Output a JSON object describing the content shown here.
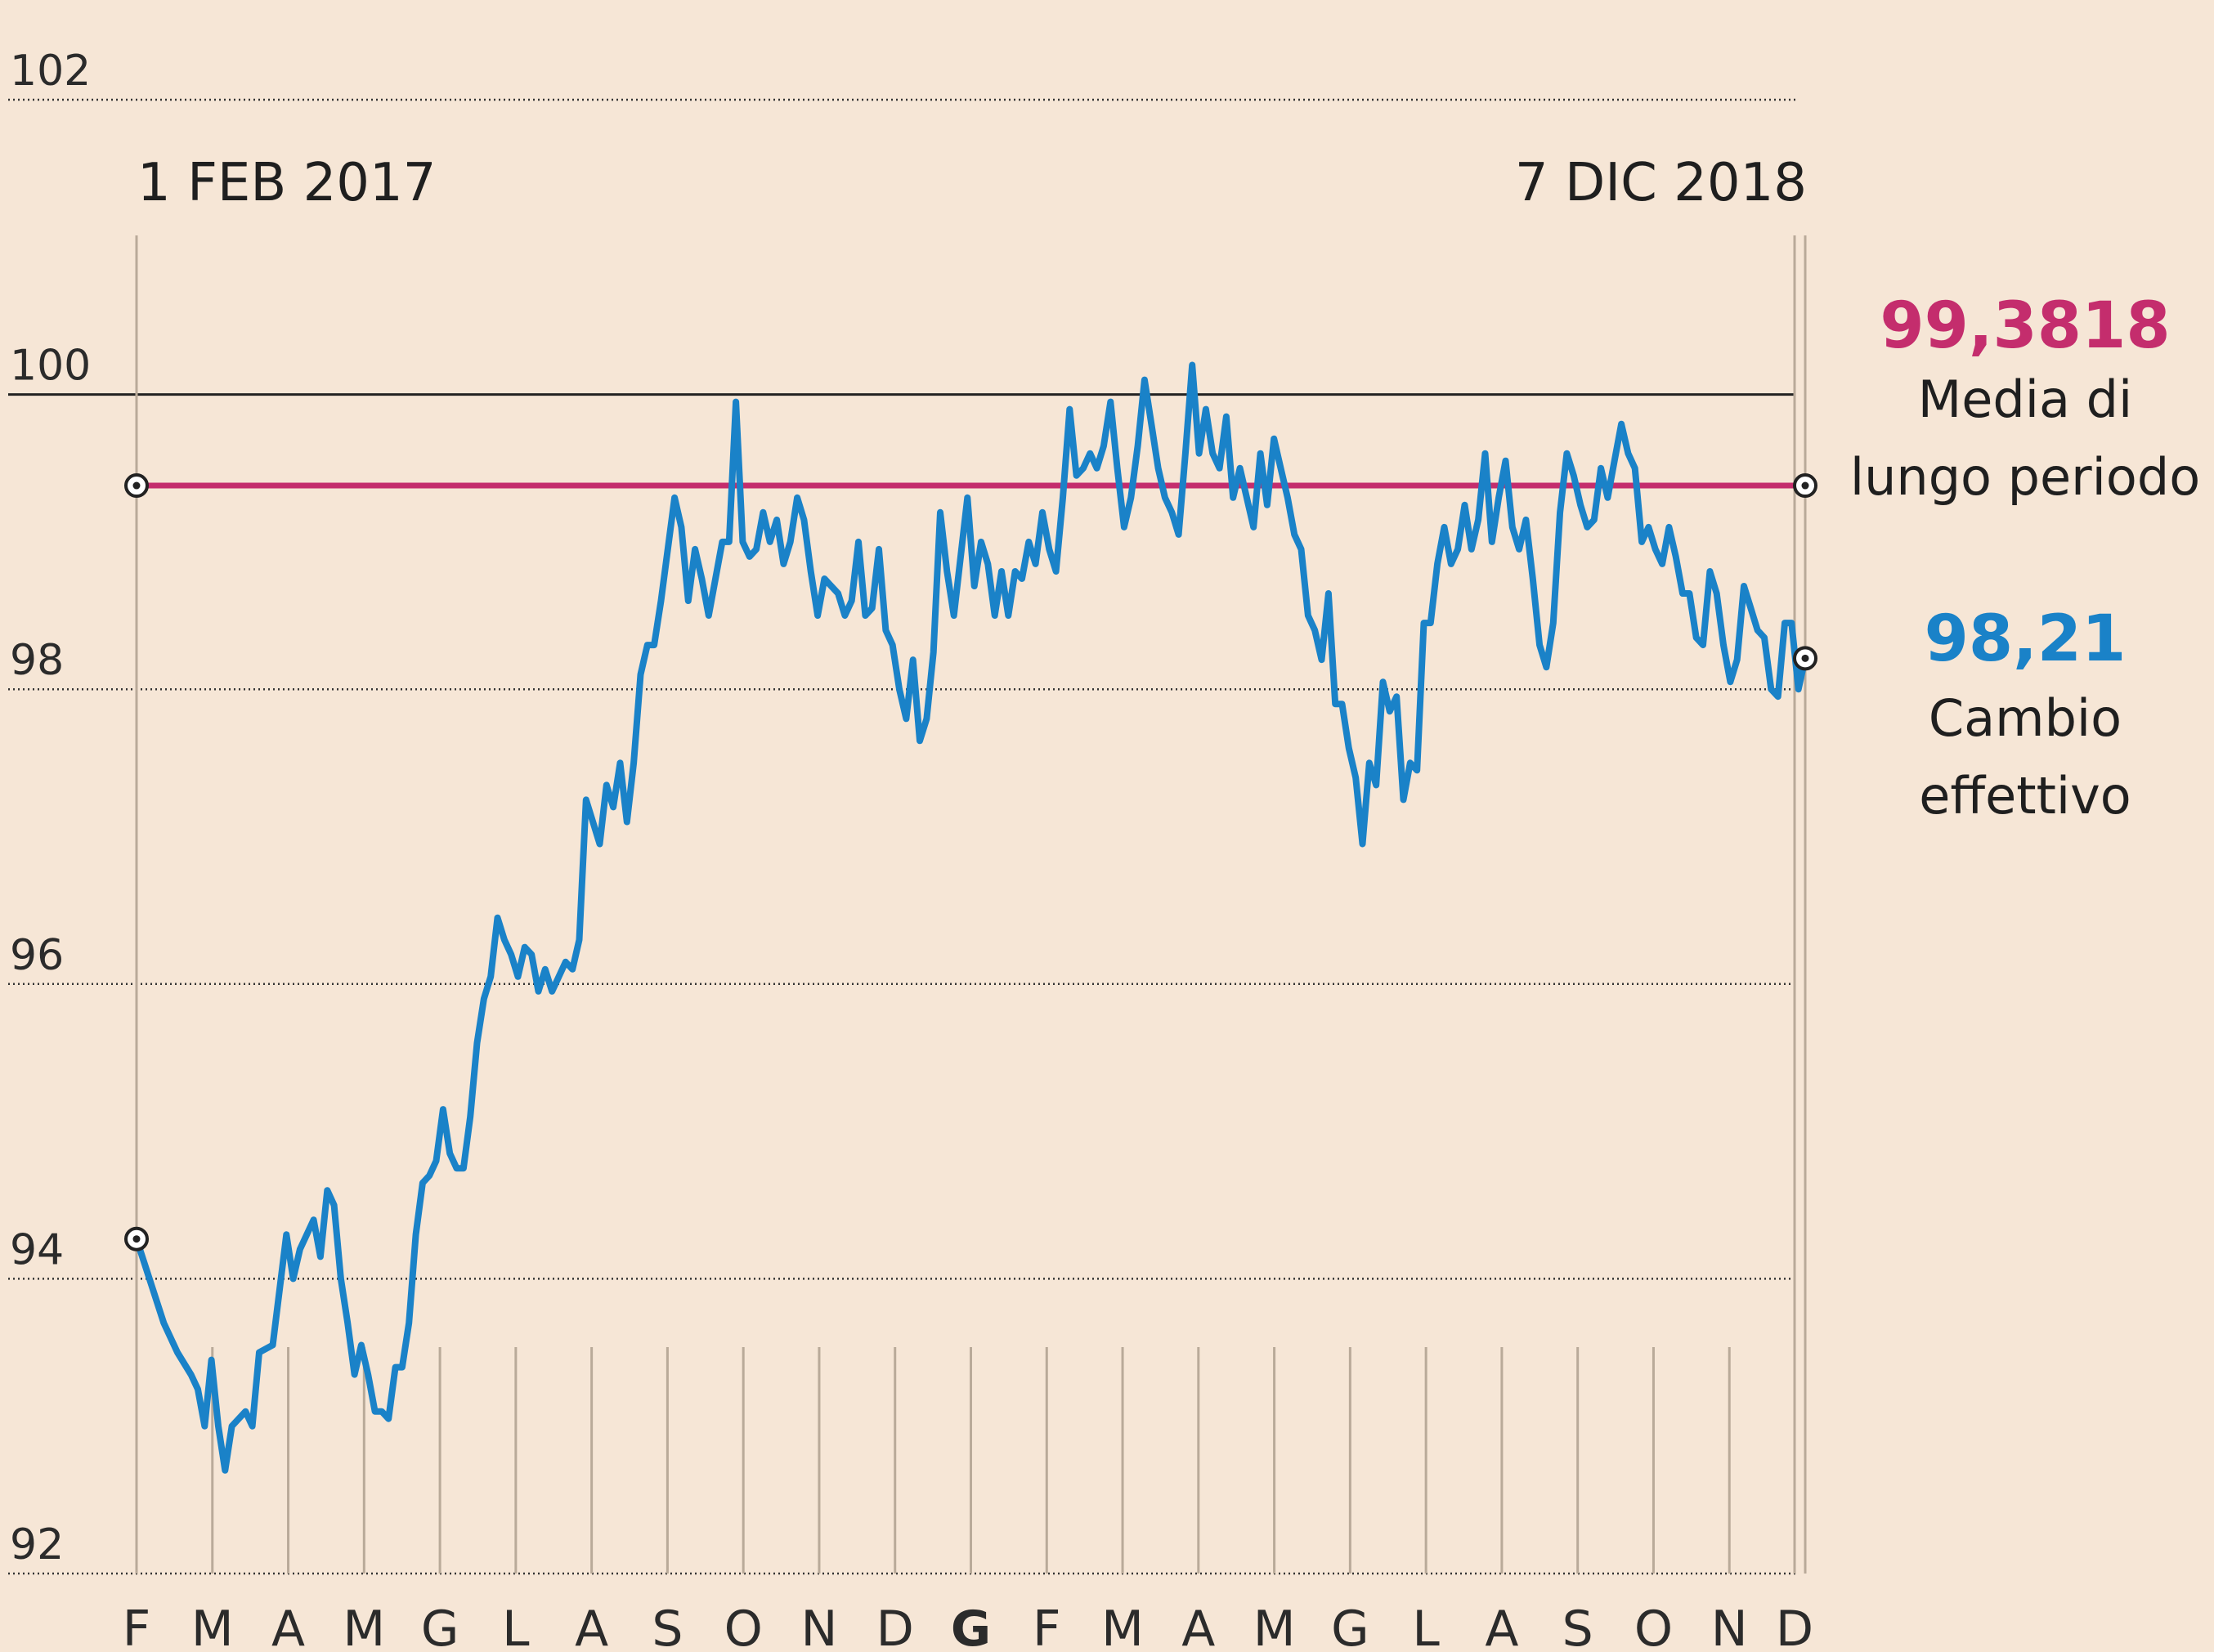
{
  "chart_data": {
    "type": "line",
    "title": "",
    "xlabel": "",
    "ylabel": "",
    "ylim": [
      92,
      102
    ],
    "yticks": [
      "92",
      "94",
      "96",
      "98",
      "100",
      "102"
    ],
    "reference_line_value": 100,
    "grid": "horizontal dotted, vertical month lines",
    "x_month_labels": [
      "F",
      "M",
      "A",
      "M",
      "G",
      "L",
      "A",
      "S",
      "O",
      "N",
      "D",
      "G",
      "F",
      "M",
      "A",
      "M",
      "G",
      "L",
      "A",
      "S",
      "O",
      "N",
      "D"
    ],
    "bold_month_label": "G",
    "start_label": "1 FEB 2017",
    "end_label": "7 DIC 2018",
    "series": [
      {
        "name": "Media di lungo periodo",
        "color": "#c42d6d",
        "value": 99.3818,
        "value_label": "99,3818",
        "label_lines": [
          "Media di",
          "lungo periodo"
        ]
      },
      {
        "name": "Cambio effettivo",
        "color": "#1a82c8",
        "value_label": "98,21",
        "label_lines": [
          "Cambio",
          "effettivo"
        ],
        "start_value": 94.27,
        "end_value": 98.21,
        "points": [
          [
            0,
            94.27
          ],
          [
            4,
            93.7
          ],
          [
            6,
            93.5
          ],
          [
            8,
            93.35
          ],
          [
            9,
            93.25
          ],
          [
            10,
            93.0
          ],
          [
            11,
            93.45
          ],
          [
            12,
            93.0
          ],
          [
            13,
            92.7
          ],
          [
            14,
            93.0
          ],
          [
            16,
            93.1
          ],
          [
            17,
            93.0
          ],
          [
            18,
            93.5
          ],
          [
            20,
            93.55
          ],
          [
            22,
            94.3
          ],
          [
            23,
            94.0
          ],
          [
            24,
            94.2
          ],
          [
            26,
            94.4
          ],
          [
            27,
            94.15
          ],
          [
            28,
            94.6
          ],
          [
            29,
            94.5
          ],
          [
            30,
            94.0
          ],
          [
            31,
            93.7
          ],
          [
            32,
            93.35
          ],
          [
            33,
            93.55
          ],
          [
            34,
            93.35
          ],
          [
            35,
            93.1
          ],
          [
            36,
            93.1
          ],
          [
            37,
            93.05
          ],
          [
            38,
            93.4
          ],
          [
            39,
            93.4
          ],
          [
            40,
            93.7
          ],
          [
            41,
            94.3
          ],
          [
            42,
            94.65
          ],
          [
            43,
            94.7
          ],
          [
            44,
            94.8
          ],
          [
            45,
            95.15
          ],
          [
            46,
            94.85
          ],
          [
            47,
            94.75
          ],
          [
            48,
            94.75
          ],
          [
            49,
            95.1
          ],
          [
            50,
            95.6
          ],
          [
            51,
            95.9
          ],
          [
            52,
            96.05
          ],
          [
            53,
            96.45
          ],
          [
            54,
            96.3
          ],
          [
            55,
            96.2
          ],
          [
            56,
            96.05
          ],
          [
            57,
            96.25
          ],
          [
            58,
            96.2
          ],
          [
            59,
            95.95
          ],
          [
            60,
            96.1
          ],
          [
            61,
            95.95
          ],
          [
            62,
            96.05
          ],
          [
            63,
            96.15
          ],
          [
            64,
            96.1
          ],
          [
            65,
            96.3
          ],
          [
            66,
            97.25
          ],
          [
            67,
            97.1
          ],
          [
            68,
            96.95
          ],
          [
            69,
            97.35
          ],
          [
            70,
            97.2
          ],
          [
            71,
            97.5
          ],
          [
            72,
            97.1
          ],
          [
            73,
            97.5
          ],
          [
            74,
            98.1
          ],
          [
            75,
            98.3
          ],
          [
            76,
            98.3
          ],
          [
            77,
            98.6
          ],
          [
            78,
            98.95
          ],
          [
            79,
            99.3
          ],
          [
            80,
            99.1
          ],
          [
            81,
            98.6
          ],
          [
            82,
            98.95
          ],
          [
            83,
            98.75
          ],
          [
            84,
            98.5
          ],
          [
            85,
            98.75
          ],
          [
            86,
            99.0
          ],
          [
            87,
            99.0
          ],
          [
            88,
            99.95
          ],
          [
            89,
            99.0
          ],
          [
            90,
            98.9
          ],
          [
            91,
            98.95
          ],
          [
            92,
            99.2
          ],
          [
            93,
            99.0
          ],
          [
            94,
            99.15
          ],
          [
            95,
            98.85
          ],
          [
            96,
            99.0
          ],
          [
            97,
            99.3
          ],
          [
            98,
            99.15
          ],
          [
            99,
            98.8
          ],
          [
            100,
            98.5
          ],
          [
            101,
            98.75
          ],
          [
            102,
            98.7
          ],
          [
            103,
            98.65
          ],
          [
            104,
            98.5
          ],
          [
            105,
            98.6
          ],
          [
            106,
            99.0
          ],
          [
            107,
            98.5
          ],
          [
            108,
            98.55
          ],
          [
            109,
            98.95
          ],
          [
            110,
            98.4
          ],
          [
            111,
            98.3
          ],
          [
            112,
            98.0
          ],
          [
            113,
            97.8
          ],
          [
            114,
            98.2
          ],
          [
            115,
            97.65
          ],
          [
            116,
            97.8
          ],
          [
            117,
            98.25
          ],
          [
            118,
            99.2
          ],
          [
            119,
            98.8
          ],
          [
            120,
            98.5
          ],
          [
            121,
            98.9
          ],
          [
            122,
            99.3
          ],
          [
            123,
            98.7
          ],
          [
            124,
            99.0
          ],
          [
            125,
            98.85
          ],
          [
            126,
            98.5
          ],
          [
            127,
            98.8
          ],
          [
            128,
            98.5
          ],
          [
            129,
            98.8
          ],
          [
            130,
            98.75
          ],
          [
            131,
            99.0
          ],
          [
            132,
            98.85
          ],
          [
            133,
            99.2
          ],
          [
            134,
            98.95
          ],
          [
            135,
            98.8
          ],
          [
            136,
            99.3
          ],
          [
            137,
            99.9
          ],
          [
            138,
            99.45
          ],
          [
            139,
            99.5
          ],
          [
            140,
            99.6
          ],
          [
            141,
            99.5
          ],
          [
            142,
            99.65
          ],
          [
            143,
            99.95
          ],
          [
            144,
            99.5
          ],
          [
            145,
            99.1
          ],
          [
            146,
            99.3
          ],
          [
            147,
            99.65
          ],
          [
            148,
            100.1
          ],
          [
            149,
            99.8
          ],
          [
            150,
            99.5
          ],
          [
            151,
            99.3
          ],
          [
            152,
            99.2
          ],
          [
            153,
            99.05
          ],
          [
            154,
            99.6
          ],
          [
            155,
            100.2
          ],
          [
            156,
            99.6
          ],
          [
            157,
            99.9
          ],
          [
            158,
            99.6
          ],
          [
            159,
            99.5
          ],
          [
            160,
            99.85
          ],
          [
            161,
            99.3
          ],
          [
            162,
            99.5
          ],
          [
            163,
            99.3
          ],
          [
            164,
            99.1
          ],
          [
            165,
            99.6
          ],
          [
            166,
            99.25
          ],
          [
            167,
            99.7
          ],
          [
            168,
            99.5
          ],
          [
            169,
            99.3
          ],
          [
            170,
            99.05
          ],
          [
            171,
            98.95
          ],
          [
            172,
            98.5
          ],
          [
            173,
            98.4
          ],
          [
            174,
            98.2
          ],
          [
            175,
            98.65
          ],
          [
            176,
            97.9
          ],
          [
            177,
            97.9
          ],
          [
            178,
            97.6
          ],
          [
            179,
            97.4
          ],
          [
            180,
            96.95
          ],
          [
            181,
            97.5
          ],
          [
            182,
            97.35
          ],
          [
            183,
            98.05
          ],
          [
            184,
            97.85
          ],
          [
            185,
            97.95
          ],
          [
            186,
            97.25
          ],
          [
            187,
            97.5
          ],
          [
            188,
            97.45
          ],
          [
            189,
            98.45
          ],
          [
            190,
            98.45
          ],
          [
            191,
            98.85
          ],
          [
            192,
            99.1
          ],
          [
            193,
            98.85
          ],
          [
            194,
            98.95
          ],
          [
            195,
            99.25
          ],
          [
            196,
            98.95
          ],
          [
            197,
            99.15
          ],
          [
            198,
            99.6
          ],
          [
            199,
            99.0
          ],
          [
            200,
            99.3
          ],
          [
            201,
            99.55
          ],
          [
            202,
            99.1
          ],
          [
            203,
            98.95
          ],
          [
            204,
            99.15
          ],
          [
            205,
            98.75
          ],
          [
            206,
            98.3
          ],
          [
            207,
            98.15
          ],
          [
            208,
            98.45
          ],
          [
            209,
            99.2
          ],
          [
            210,
            99.6
          ],
          [
            211,
            99.45
          ],
          [
            212,
            99.25
          ],
          [
            213,
            99.1
          ],
          [
            214,
            99.15
          ],
          [
            215,
            99.5
          ],
          [
            216,
            99.3
          ],
          [
            217,
            99.55
          ],
          [
            218,
            99.8
          ],
          [
            219,
            99.6
          ],
          [
            220,
            99.5
          ],
          [
            221,
            99.0
          ],
          [
            222,
            99.1
          ],
          [
            223,
            98.95
          ],
          [
            224,
            98.85
          ],
          [
            225,
            99.1
          ],
          [
            226,
            98.9
          ],
          [
            227,
            98.65
          ],
          [
            228,
            98.65
          ],
          [
            229,
            98.35
          ],
          [
            230,
            98.3
          ],
          [
            231,
            98.8
          ],
          [
            232,
            98.65
          ],
          [
            233,
            98.3
          ],
          [
            234,
            98.05
          ],
          [
            235,
            98.2
          ],
          [
            236,
            98.7
          ],
          [
            237,
            98.55
          ],
          [
            238,
            98.4
          ],
          [
            239,
            98.35
          ],
          [
            240,
            98.0
          ],
          [
            241,
            97.95
          ],
          [
            242,
            98.45
          ],
          [
            243,
            98.45
          ],
          [
            244,
            98.0
          ],
          [
            245,
            98.21
          ]
        ]
      }
    ]
  }
}
